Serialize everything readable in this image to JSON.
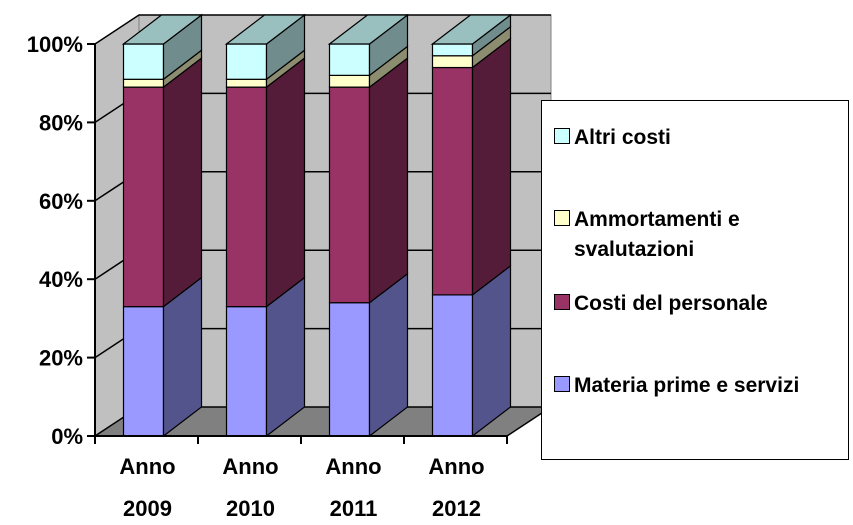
{
  "chart_data": {
    "type": "bar",
    "stacked": true,
    "percent": true,
    "three_d": true,
    "categories": [
      [
        "Anno",
        "2009"
      ],
      [
        "Anno",
        "2010"
      ],
      [
        "Anno",
        "2011"
      ],
      [
        "Anno",
        "2012"
      ]
    ],
    "series": [
      {
        "name": "Materia prime e servizi",
        "values": [
          33,
          33,
          34,
          36
        ],
        "color": "#9999FF"
      },
      {
        "name": "Costi del personale",
        "values": [
          56,
          56,
          55,
          58
        ],
        "color": "#993366"
      },
      {
        "name": "Ammortamenti e svalutazioni",
        "values": [
          2,
          2,
          3,
          3
        ],
        "color": "#FFFFCC"
      },
      {
        "name": "Altri costi",
        "values": [
          9,
          9,
          8,
          3
        ],
        "color": "#CCFFFF"
      }
    ],
    "ylim": [
      0,
      100
    ],
    "yticks": [
      "0%",
      "20%",
      "40%",
      "60%",
      "80%",
      "100%"
    ],
    "grid": true,
    "legend_position": "right",
    "wall_color": "#C0C0C0",
    "floor_color": "#808080"
  },
  "legend": {
    "items": [
      {
        "label": "Altri costi",
        "color": "#CCFFFF"
      },
      {
        "label": "Ammortamenti e svalutazioni",
        "color": "#FFFFCC"
      },
      {
        "label": "Costi del personale",
        "color": "#993366"
      },
      {
        "label": "Materia prime e servizi",
        "color": "#9999FF"
      }
    ]
  }
}
